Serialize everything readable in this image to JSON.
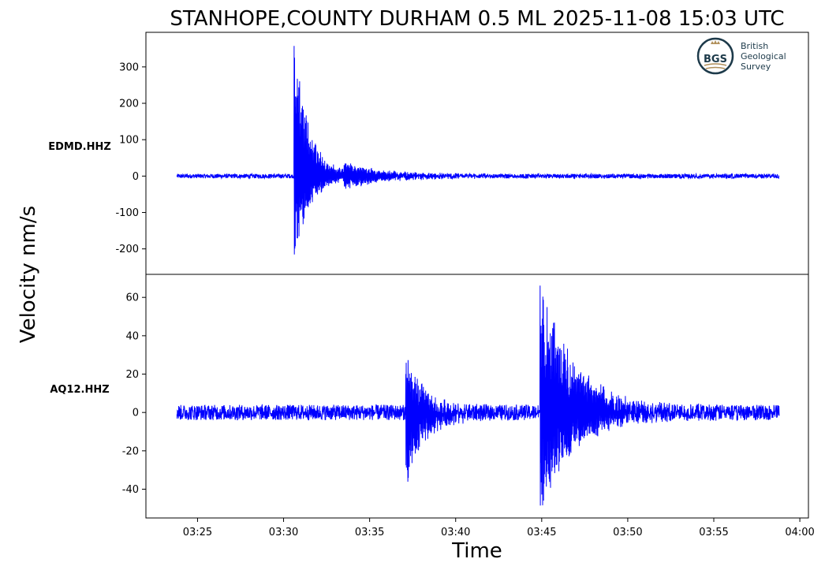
{
  "chart_data": {
    "type": "line",
    "title": "STANHOPE,COUNTY DURHAM 0.5 ML   2025-11-08 15:03 UTC",
    "xlabel": "Time",
    "ylabel": "Velocity nm/s",
    "x_ticks": [
      "03:25",
      "03:30",
      "03:35",
      "03:40",
      "03:45",
      "03:50",
      "03:55",
      "04:00"
    ],
    "xlim_minutes": [
      22.0,
      60.5
    ],
    "x_tick_minutes": [
      25,
      30,
      35,
      40,
      45,
      50,
      55,
      60
    ],
    "line_color": "#0000ff",
    "logo": {
      "abbr": "BGS",
      "lines": [
        "British",
        "Geological",
        "Survey"
      ]
    },
    "series": [
      {
        "name": "EDMD.HHZ",
        "ylim": [
          -270,
          395
        ],
        "y_ticks": [
          300,
          200,
          100,
          0,
          -100,
          -200
        ],
        "y_tick_labels": [
          "300",
          "200",
          "100",
          "0",
          "-100",
          "-200"
        ],
        "t_start": 23.8,
        "t_end": 58.8,
        "noise_amplitude": 6,
        "events": [
          {
            "t": 30.6,
            "peak": 370,
            "min": -240,
            "decay_min": 2.0
          },
          {
            "t": 33.5,
            "peak": 30,
            "min": -30,
            "decay_min": 6.0
          }
        ]
      },
      {
        "name": "AQ12.HHZ",
        "ylim": [
          -55,
          72
        ],
        "y_ticks": [
          60,
          40,
          20,
          0,
          -20,
          -40
        ],
        "y_tick_labels": [
          "60",
          "40",
          "20",
          "0",
          "-20",
          "-40"
        ],
        "t_start": 23.8,
        "t_end": 58.8,
        "noise_amplitude": 4,
        "events": [
          {
            "t": 37.1,
            "peak": 28,
            "min": -38,
            "decay_min": 2.5
          },
          {
            "t": 44.9,
            "peak": 67,
            "min": -49,
            "decay_min": 4.5
          }
        ]
      }
    ]
  }
}
